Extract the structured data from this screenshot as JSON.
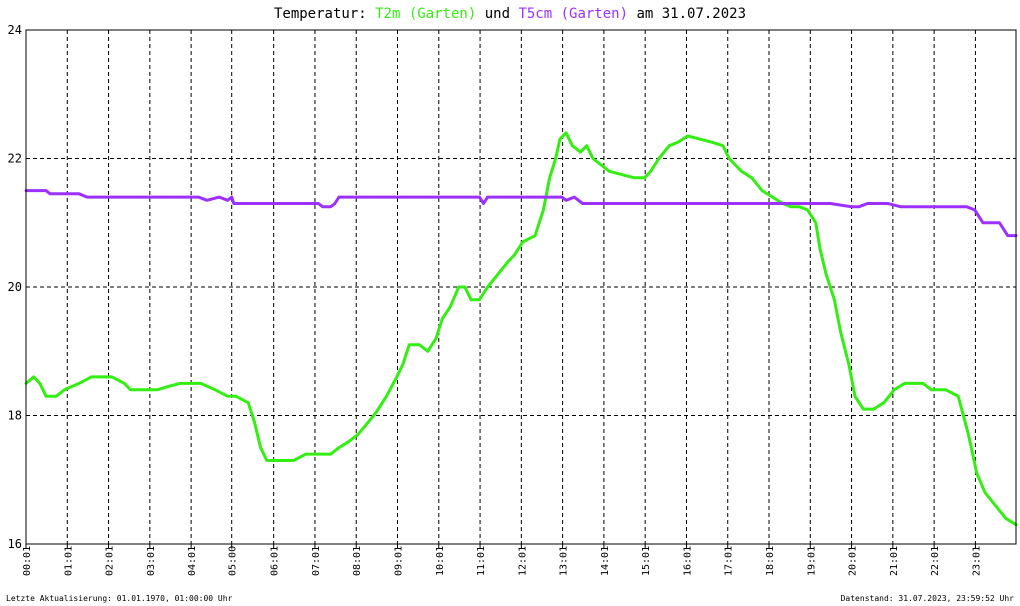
{
  "title": {
    "prefix": "Temperatur: ",
    "series1": "T2m (Garten)",
    "middle": " und ",
    "series2": "T5cm (Garten)",
    "suffix": " am 31.07.2023"
  },
  "footer": {
    "left": "Letzte Aktualisierung: 01.01.1970, 01:00:00 Uhr",
    "right": "Datenstand: 31.07.2023, 23:59:52 Uhr"
  },
  "colors": {
    "t2m": "#33ee11",
    "t5cm": "#9b30ff",
    "grid": "#000000",
    "background": "#ffffff"
  },
  "chart_data": {
    "type": "line",
    "title": "Temperatur: T2m (Garten) und T5cm (Garten) am 31.07.2023",
    "xlabel": "",
    "ylabel": "",
    "xlim": [
      0.0167,
      24
    ],
    "ylim": [
      16,
      24
    ],
    "yticks": [
      "16",
      "18",
      "20",
      "22",
      "24"
    ],
    "xticks": [
      "00:01",
      "01:01",
      "02:01",
      "03:01",
      "04:01",
      "05:00",
      "06:01",
      "07:01",
      "08:01",
      "09:01",
      "10:01",
      "11:01",
      "12:01",
      "13:01",
      "14:01",
      "15:01",
      "16:01",
      "17:01",
      "18:01",
      "19:01",
      "20:01",
      "21:01",
      "22:01",
      "23:01"
    ],
    "xtick_hours": [
      0.0167,
      1.0167,
      2.0167,
      3.0167,
      4.0167,
      5.0,
      6.0167,
      7.0167,
      8.0167,
      9.0167,
      10.0167,
      11.0167,
      12.0167,
      13.0167,
      14.0167,
      15.0167,
      16.0167,
      17.0167,
      18.0167,
      19.0167,
      20.0167,
      21.0167,
      22.0167,
      23.0167
    ],
    "grid": true,
    "series": [
      {
        "name": "T2m (Garten)",
        "color": "#33ee11",
        "x": [
          0.02,
          0.2,
          0.35,
          0.5,
          0.75,
          0.95,
          1.3,
          1.6,
          2.1,
          2.4,
          2.55,
          2.75,
          3.0,
          3.2,
          3.45,
          3.75,
          4.05,
          4.25,
          4.6,
          4.9,
          5.1,
          5.4,
          5.55,
          5.7,
          5.85,
          6.0,
          6.1,
          6.5,
          6.8,
          7.0,
          7.4,
          7.6,
          7.85,
          8.05,
          8.25,
          8.5,
          8.75,
          9.0,
          9.15,
          9.3,
          9.55,
          9.75,
          9.95,
          10.1,
          10.3,
          10.5,
          10.65,
          10.8,
          11.0,
          11.2,
          11.45,
          11.7,
          11.85,
          12.05,
          12.35,
          12.55,
          12.7,
          12.85,
          12.95,
          13.1,
          13.25,
          13.45,
          13.6,
          13.75,
          13.95,
          14.15,
          14.45,
          14.75,
          15.0,
          15.15,
          15.35,
          15.6,
          15.8,
          16.05,
          16.35,
          16.65,
          16.9,
          17.05,
          17.35,
          17.6,
          17.85,
          18.1,
          18.35,
          18.55,
          18.75,
          18.95,
          19.15,
          19.25,
          19.4,
          19.6,
          19.75,
          19.95,
          20.1,
          20.3,
          20.55,
          20.8,
          21.05,
          21.3,
          21.5,
          21.75,
          21.95,
          22.3,
          22.6,
          22.85,
          23.05,
          23.25,
          23.5,
          23.75,
          24.0
        ],
        "y": [
          18.5,
          18.6,
          18.5,
          18.3,
          18.3,
          18.4,
          18.5,
          18.6,
          18.6,
          18.5,
          18.4,
          18.4,
          18.4,
          18.4,
          18.45,
          18.5,
          18.5,
          18.5,
          18.4,
          18.3,
          18.3,
          18.2,
          17.9,
          17.5,
          17.3,
          17.3,
          17.3,
          17.3,
          17.4,
          17.4,
          17.4,
          17.5,
          17.6,
          17.7,
          17.85,
          18.05,
          18.3,
          18.6,
          18.8,
          19.1,
          19.1,
          19.0,
          19.2,
          19.5,
          19.7,
          20.0,
          20.0,
          19.8,
          19.8,
          20.0,
          20.2,
          20.4,
          20.5,
          20.7,
          20.8,
          21.2,
          21.7,
          22.0,
          22.3,
          22.4,
          22.2,
          22.1,
          22.2,
          22.0,
          21.9,
          21.8,
          21.75,
          21.7,
          21.7,
          21.8,
          22.0,
          22.2,
          22.25,
          22.35,
          22.3,
          22.25,
          22.2,
          22.0,
          21.8,
          21.7,
          21.5,
          21.4,
          21.3,
          21.25,
          21.25,
          21.2,
          21.0,
          20.6,
          20.2,
          19.8,
          19.3,
          18.8,
          18.3,
          18.1,
          18.1,
          18.2,
          18.4,
          18.5,
          18.5,
          18.5,
          18.4,
          18.4,
          18.3,
          17.7,
          17.1,
          16.8,
          16.6,
          16.4,
          16.3
        ]
      },
      {
        "name": "T5cm (Garten)",
        "color": "#9b30ff",
        "x": [
          0.02,
          0.3,
          0.5,
          0.6,
          0.8,
          1.0,
          1.3,
          1.5,
          2.0,
          2.5,
          3.0,
          3.5,
          3.8,
          4.0,
          4.2,
          4.4,
          4.7,
          4.9,
          5.0,
          5.05,
          5.3,
          5.5,
          6.0,
          6.5,
          7.0,
          7.1,
          7.2,
          7.4,
          7.5,
          7.6,
          8.0,
          8.5,
          9.0,
          9.5,
          10.0,
          10.5,
          11.0,
          11.1,
          11.2,
          11.5,
          12.0,
          12.5,
          13.0,
          13.1,
          13.3,
          13.5,
          13.7,
          14.0,
          14.5,
          15.0,
          15.5,
          16.0,
          16.5,
          17.0,
          17.5,
          18.0,
          18.5,
          19.0,
          19.5,
          20.0,
          20.2,
          20.4,
          20.6,
          20.9,
          21.2,
          21.4,
          21.6,
          21.9,
          22.2,
          22.5,
          22.8,
          23.0,
          23.2,
          23.4,
          23.6,
          23.7,
          23.8,
          24.0
        ],
        "y": [
          21.5,
          21.5,
          21.5,
          21.45,
          21.45,
          21.45,
          21.45,
          21.4,
          21.4,
          21.4,
          21.4,
          21.4,
          21.4,
          21.4,
          21.4,
          21.35,
          21.4,
          21.35,
          21.4,
          21.3,
          21.3,
          21.3,
          21.3,
          21.3,
          21.3,
          21.3,
          21.25,
          21.25,
          21.3,
          21.4,
          21.4,
          21.4,
          21.4,
          21.4,
          21.4,
          21.4,
          21.4,
          21.3,
          21.4,
          21.4,
          21.4,
          21.4,
          21.4,
          21.35,
          21.4,
          21.3,
          21.3,
          21.3,
          21.3,
          21.3,
          21.3,
          21.3,
          21.3,
          21.3,
          21.3,
          21.3,
          21.3,
          21.3,
          21.3,
          21.25,
          21.25,
          21.3,
          21.3,
          21.3,
          21.25,
          21.25,
          21.25,
          21.25,
          21.25,
          21.25,
          21.25,
          21.2,
          21.0,
          21.0,
          21.0,
          20.9,
          20.8,
          20.8
        ]
      }
    ]
  }
}
